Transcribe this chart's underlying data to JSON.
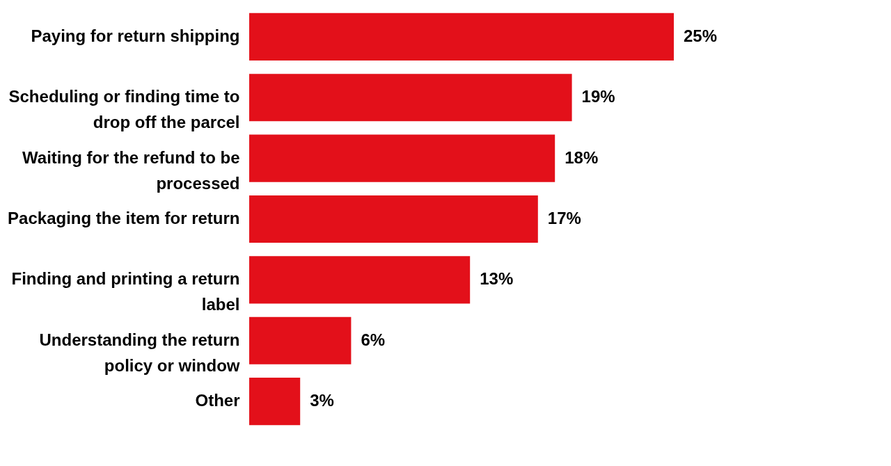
{
  "chart_data": {
    "type": "bar",
    "orientation": "horizontal",
    "data_labels": true,
    "categories": [
      "Paying for return shipping",
      "Scheduling or finding time to drop off the parcel",
      "Waiting for the refund to be processed",
      "Packaging the item for return",
      "Finding and printing a return label",
      "Understanding the return policy or window",
      "Other"
    ],
    "values": [
      25,
      19,
      18,
      17,
      13,
      6,
      3
    ],
    "value_labels": [
      "25%",
      "19%",
      "18%",
      "17%",
      "13%",
      "6%",
      "3%"
    ],
    "color": "#e3101a",
    "grid": false
  }
}
